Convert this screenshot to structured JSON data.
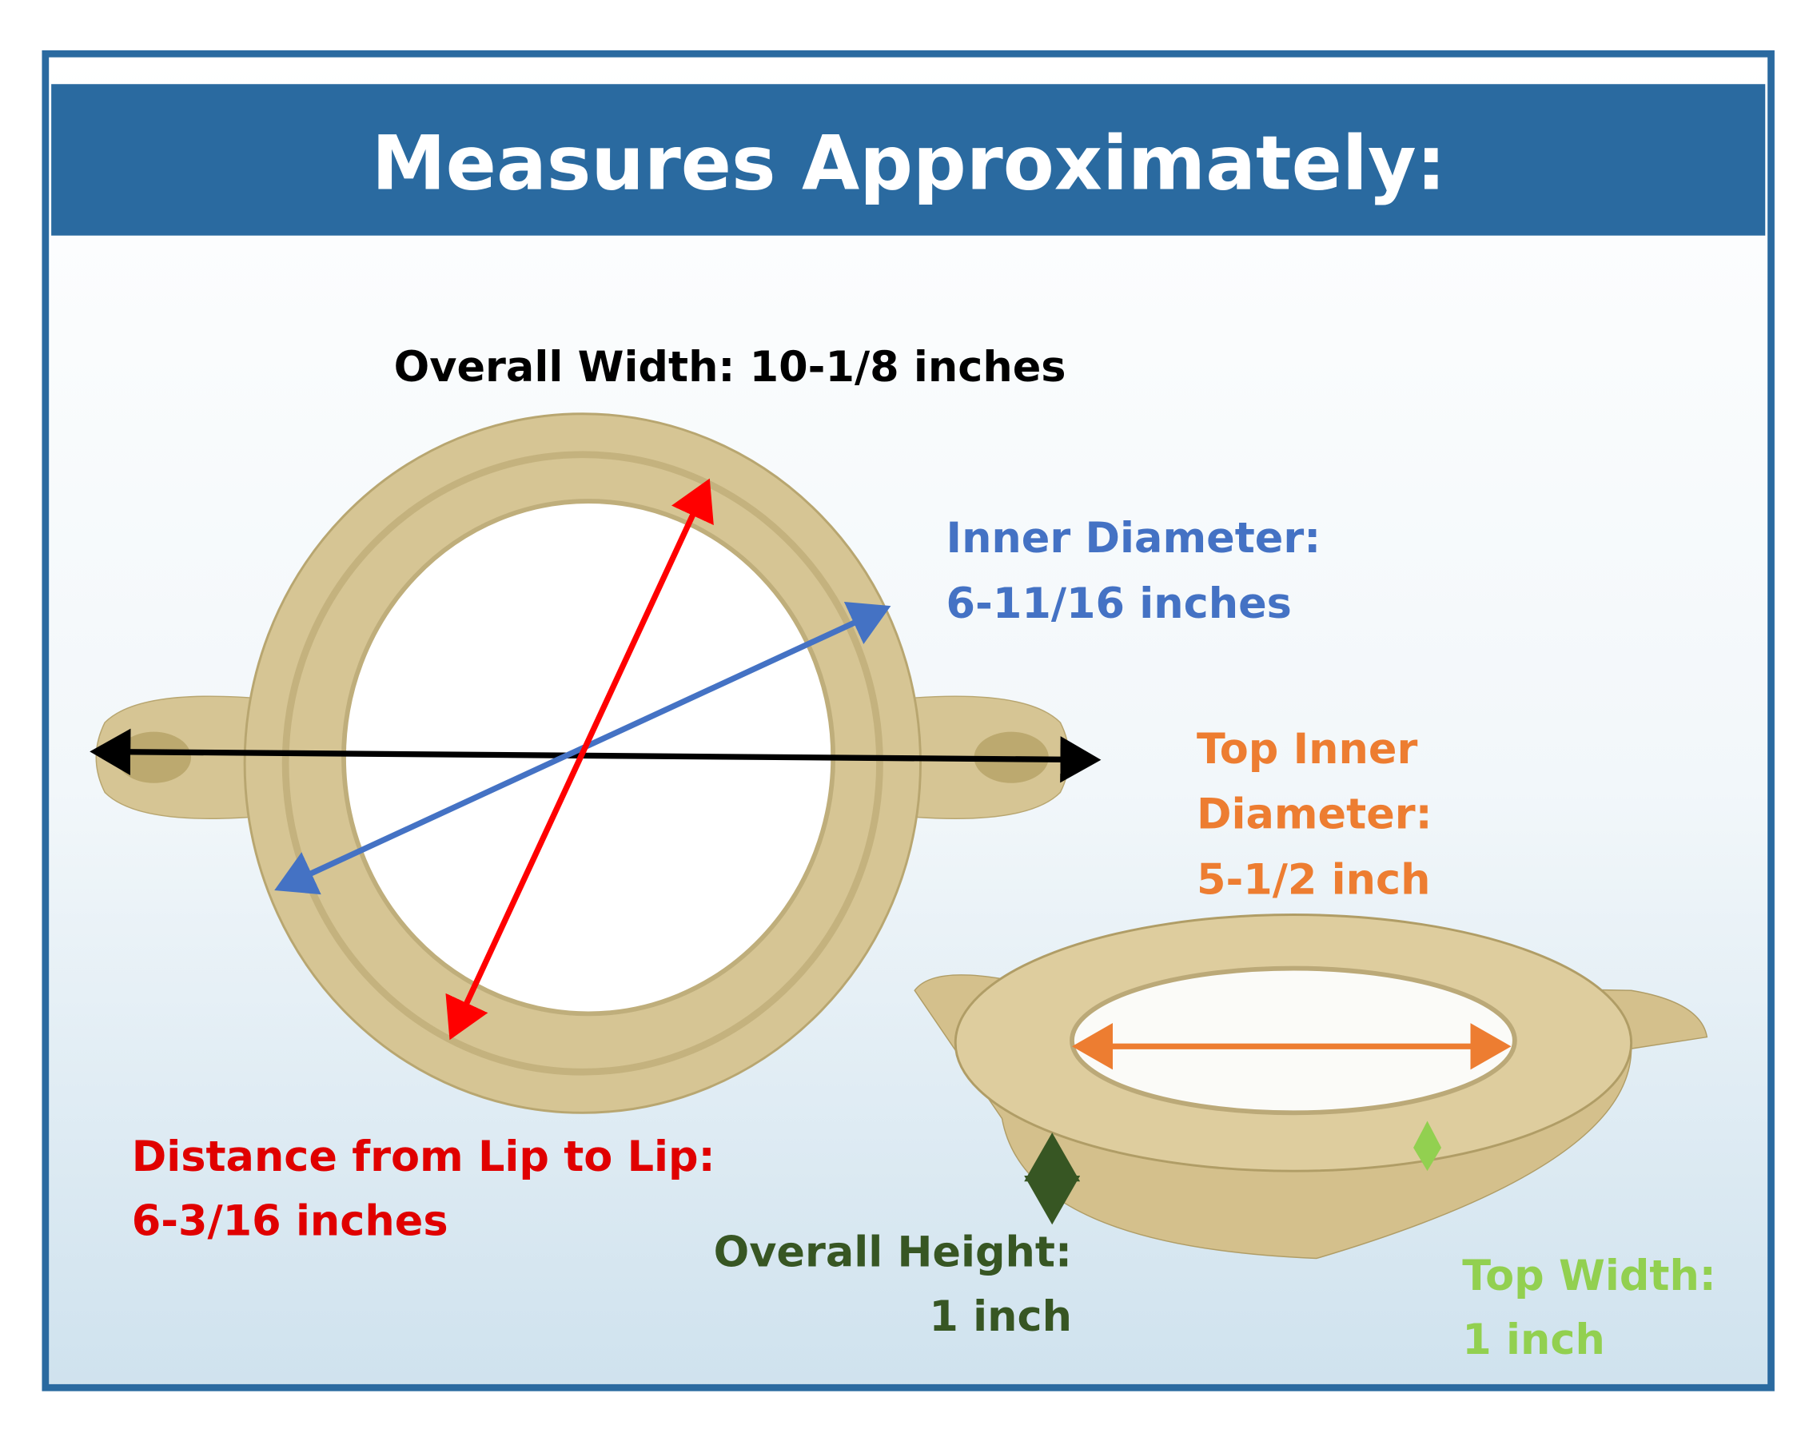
{
  "header": {
    "title": "Measures Approximately:"
  },
  "labels": {
    "overall_width": [
      "Overall Width: 10-1/8 inches"
    ],
    "inner_diameter": [
      "Inner Diameter:",
      "6-11/16 inches"
    ],
    "top_inner_diameter": [
      "Top Inner",
      "Diameter:",
      "5-1/2 inch"
    ],
    "lip_to_lip": [
      "Distance from Lip to Lip:",
      "6-3/16 inches"
    ],
    "overall_height": [
      "Overall Height:",
      "1 inch"
    ],
    "top_width": [
      "Top Width:",
      "1 inch"
    ]
  }
}
